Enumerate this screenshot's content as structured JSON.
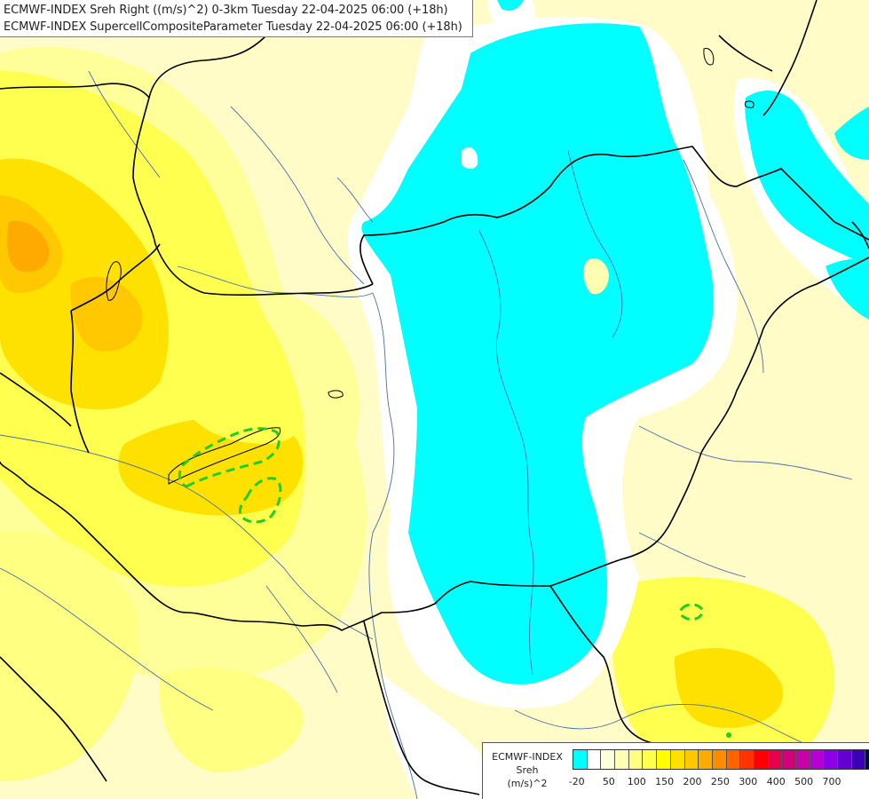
{
  "header": {
    "line1": "ECMWF-INDEX Sreh Right ((m/s)^2) 0-3km Tuesday 22-04-2025 06:00 (+18h)",
    "line2": "ECMWF-INDEX SupercellCompositeParameter Tuesday 22-04-2025 06:00 (+18h)"
  },
  "legend": {
    "title": "ECMWF-INDEX",
    "subtitle": "Sreh",
    "unit": "(m/s)^2",
    "colors": [
      "#00ffff",
      "#ffffff",
      "#ffffdc",
      "#ffffb4",
      "#ffff82",
      "#ffff50",
      "#ffff00",
      "#ffe100",
      "#ffc800",
      "#ffaa00",
      "#ff8c00",
      "#ff6400",
      "#ff3200",
      "#ff0000",
      "#e6004b",
      "#d20078",
      "#c800aa",
      "#b400d2",
      "#8c00e6",
      "#6400d2",
      "#3c00b4",
      "#000078"
    ],
    "ticks": [
      "-20",
      "50",
      "100",
      "150",
      "200",
      "250",
      "300",
      "400",
      "500",
      "700"
    ]
  },
  "map_layers": {
    "land_color": "#fffcc8",
    "low_value_color": "#00ffff",
    "zero_color": "#ffffff",
    "border_color": "#000000",
    "river_color": "#4a6ea8",
    "scp_contour_color": "#22cc22"
  }
}
